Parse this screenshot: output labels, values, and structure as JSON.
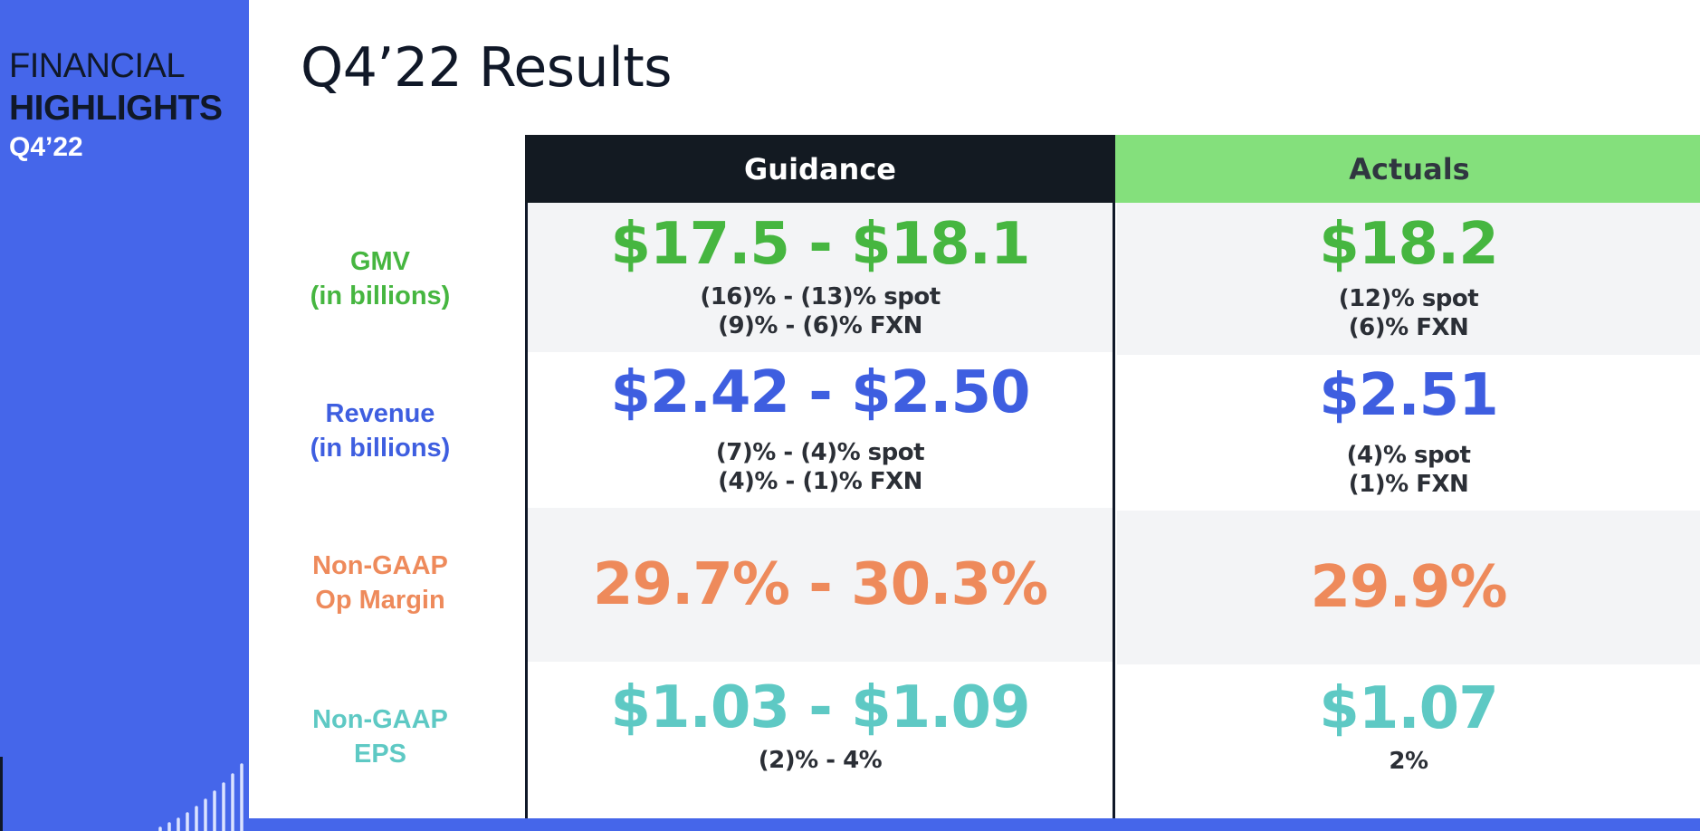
{
  "sidebar": {
    "line1": "FINANCIAL",
    "line2": "HIGHLIGHTS",
    "line3": "Q4’22"
  },
  "title": "Q4’22 Results",
  "columns": {
    "guidance": "Guidance",
    "actuals": "Actuals"
  },
  "rows": {
    "gmv": {
      "label_line1": "GMV",
      "label_line2": "(in billions)",
      "guidance_value": "$17.5 - $18.1",
      "guidance_sub1": "(16)% - (13)% spot",
      "guidance_sub2": "(9)% - (6)% FXN",
      "actual_value": "$18.2",
      "actual_sub1": "(12)% spot",
      "actual_sub2": "(6)% FXN"
    },
    "revenue": {
      "label_line1": "Revenue",
      "label_line2": "(in billions)",
      "guidance_value": "$2.42 - $2.50",
      "guidance_sub1": "(7)% - (4)% spot",
      "guidance_sub2": "(4)% - (1)% FXN",
      "actual_value": "$2.51",
      "actual_sub1": "(4)% spot",
      "actual_sub2": "(1)% FXN"
    },
    "op_margin": {
      "label_line1": "Non-GAAP",
      "label_line2": "Op Margin",
      "guidance_value": "29.7% - 30.3%",
      "actual_value": "29.9%"
    },
    "eps": {
      "label_line1": "Non-GAAP",
      "label_line2": "EPS",
      "guidance_value": "$1.03 - $1.09",
      "guidance_sub1": "(2)% - 4%",
      "actual_value": "$1.07",
      "actual_sub1": "2%"
    }
  },
  "colors": {
    "sidebar": "#4566ea",
    "gmv": "#46b640",
    "revenue": "#3e5ee0",
    "op_margin": "#ee8a5b",
    "eps": "#5ec9c4",
    "guidance_header": "#131a22",
    "actuals_header": "#84e07c"
  }
}
